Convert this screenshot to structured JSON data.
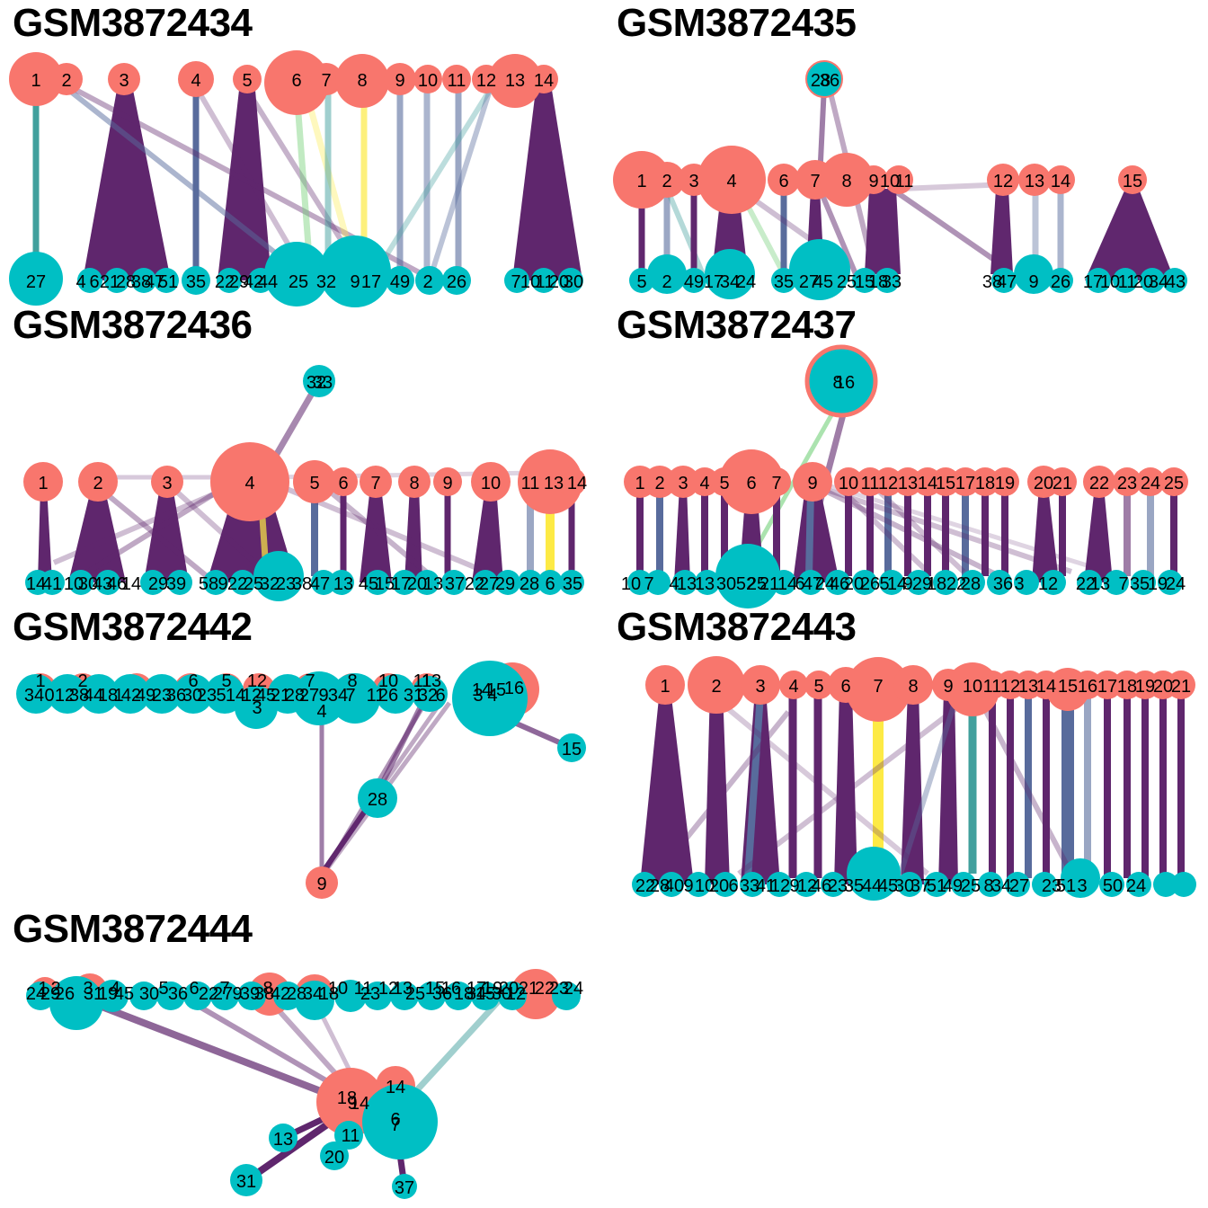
{
  "figure": {
    "source_color": "#F8766D",
    "target_color": "#00BFC4",
    "edge_palette": [
      "#440154",
      "#3B528B",
      "#21908C",
      "#5DC863",
      "#FDE725"
    ]
  },
  "panels": [
    {
      "id": "p1",
      "title": "GSM3872434",
      "sources": [
        "1",
        "2",
        "3",
        "4",
        "5",
        "6",
        "7",
        "8",
        "9",
        "10",
        "11",
        "12",
        "13",
        "14"
      ],
      "targets": [
        "27",
        "4",
        "6",
        "21",
        "28",
        "38",
        "47",
        "51",
        "35",
        "22",
        "29",
        "42",
        "44",
        "25",
        "32",
        "9",
        "17",
        "49",
        "2",
        "26",
        "7",
        "10",
        "11",
        "20",
        "30"
      ]
    },
    {
      "id": "p2",
      "title": "GSM3872435",
      "sources": [
        "1",
        "2",
        "3",
        "4",
        "6",
        "7",
        "8",
        "9",
        "10",
        "11",
        "12",
        "13",
        "14",
        "15"
      ],
      "targets": [
        "28",
        "36",
        "5",
        "2",
        "49",
        "17",
        "34",
        "24",
        "35",
        "27",
        "45",
        "25",
        "15",
        "18",
        "33",
        "38",
        "47",
        "9",
        "26",
        "17",
        "10",
        "11",
        "20",
        "34",
        "43"
      ]
    },
    {
      "id": "p3",
      "title": "GSM3872436",
      "sources": [
        "1",
        "2",
        "3",
        "4",
        "5",
        "6",
        "7",
        "8",
        "9",
        "10",
        "11",
        "13",
        "14"
      ],
      "targets": [
        "32",
        "33",
        "14",
        "41",
        "10",
        "30",
        "43",
        "46",
        "14",
        "29",
        "39",
        "58",
        "9",
        "22",
        "25",
        "32",
        "23",
        "38",
        "47",
        "13",
        "45",
        "15",
        "17",
        "20",
        "13",
        "37",
        "22",
        "27",
        "29",
        "28",
        "6",
        "35"
      ]
    },
    {
      "id": "p4",
      "title": "GSM3872437",
      "sources": [
        "1",
        "2",
        "3",
        "4",
        "5",
        "6",
        "7",
        "9",
        "10",
        "11",
        "12",
        "13",
        "14",
        "15",
        "17",
        "18",
        "19",
        "20",
        "21",
        "22",
        "23",
        "24",
        "25"
      ],
      "targets": [
        "8",
        "16",
        "10",
        "7",
        "4",
        "13",
        "13",
        "30",
        "52",
        "25",
        "21",
        "14",
        "6",
        "47",
        "24",
        "46",
        "20",
        "26",
        "5",
        "14",
        "9",
        "29",
        "18",
        "22",
        "28",
        "36",
        "3",
        "12",
        "22",
        "13",
        "7",
        "35",
        "19",
        "24"
      ]
    },
    {
      "id": "p5",
      "title": "GSM3872442",
      "sources": [
        "1",
        "2",
        "3",
        "4",
        "5",
        "6",
        "7",
        "8",
        "9",
        "10",
        "11",
        "12",
        "13",
        "14",
        "15",
        "16"
      ],
      "targets": [
        "34",
        "0",
        "12",
        "38",
        "44",
        "18",
        "1",
        "42",
        "49",
        "23",
        "36",
        "30",
        "23",
        "5",
        "14",
        "12",
        "45",
        "21",
        "28",
        "27",
        "9",
        "34",
        "7",
        "11",
        "26",
        "31",
        "32",
        "6",
        "3",
        "4",
        "15",
        "28"
      ]
    },
    {
      "id": "p6",
      "title": "GSM3872443",
      "sources": [
        "1",
        "2",
        "3",
        "4",
        "5",
        "6",
        "7",
        "8",
        "9",
        "10",
        "11",
        "12",
        "13",
        "14",
        "15",
        "16",
        "17",
        "18",
        "19",
        "20",
        "21"
      ],
      "targets": [
        "22",
        "28",
        "40",
        "9",
        "10",
        "20",
        "6",
        "33",
        "41",
        "12",
        "9",
        "12",
        "46",
        "23",
        "35",
        "44",
        "45",
        "30",
        "37",
        "51",
        "49",
        "25",
        "8",
        "34",
        "27",
        "23",
        "51",
        "3",
        "50",
        "24"
      ]
    },
    {
      "id": "p7",
      "title": "GSM3872444",
      "sources": [
        "1",
        "2",
        "3",
        "4",
        "5",
        "6",
        "7",
        "8",
        "9",
        "10",
        "11",
        "12",
        "13",
        "14",
        "15",
        "16",
        "17",
        "18",
        "19",
        "20",
        "21",
        "22",
        "23",
        "24"
      ],
      "targets": [
        "24",
        "29",
        "26",
        "31",
        "19",
        "45",
        "30",
        "36",
        "22",
        "27",
        "9",
        "39",
        "38",
        "42",
        "28",
        "34",
        "18",
        "23",
        "25",
        "36",
        "18",
        "15",
        "30",
        "12",
        "14",
        "34",
        "6",
        "13",
        "11",
        "20",
        "31",
        "37",
        "7"
      ]
    }
  ]
}
